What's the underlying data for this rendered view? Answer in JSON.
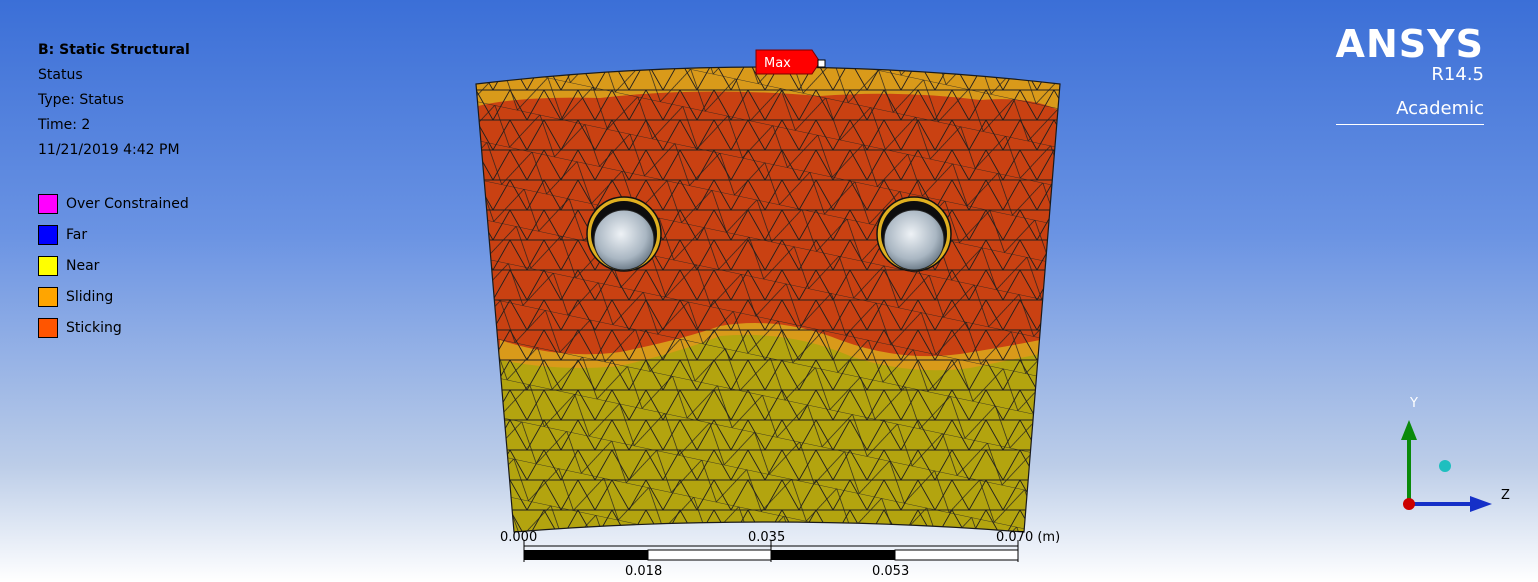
{
  "info": {
    "title": "B: Static Structural",
    "result": "Status",
    "type_line": "Type: Status",
    "time_line": "Time: 2",
    "date_line": "11/21/2019 4:42 PM"
  },
  "legend": [
    {
      "label": "Over Constrained",
      "color": "#ff00ff"
    },
    {
      "label": "Far",
      "color": "#0000ff"
    },
    {
      "label": "Near",
      "color": "#ffff00"
    },
    {
      "label": "Sliding",
      "color": "#ffa500"
    },
    {
      "label": "Sticking",
      "color": "#ff5500"
    }
  ],
  "logo": {
    "brand": "ANSYS",
    "version": "R14.5",
    "edition": "Academic"
  },
  "probe": {
    "max_label": "Max",
    "color": "#ff0000"
  },
  "scale_bar": {
    "top_labels": [
      "0.000",
      "0.035",
      "0.070 (m)"
    ],
    "bottom_labels": [
      "0.018",
      "0.053"
    ]
  },
  "triad": {
    "y_label": "Y",
    "z_label": "Z"
  },
  "colors": {
    "sticking_fill": "#c94112",
    "near_fill": "#b3a40f",
    "sliding_fill": "#d99a1a",
    "mesh_line": "#222222"
  }
}
